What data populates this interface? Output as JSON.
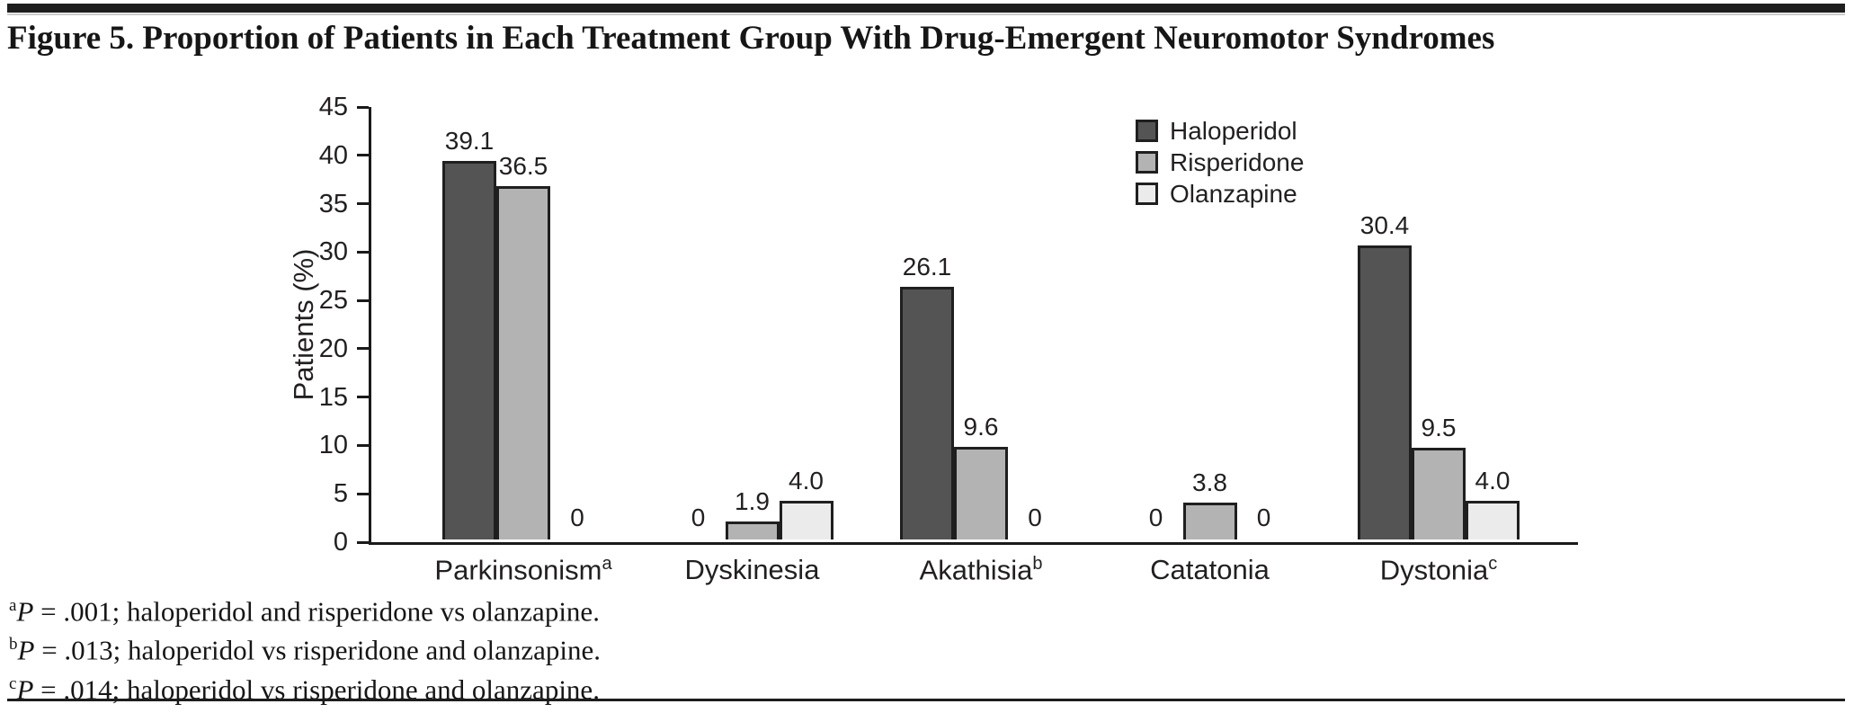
{
  "title": "Figure 5. Proportion of Patients in Each Treatment Group With Drug-Emergent Neuromotor Syndromes",
  "chart_data": {
    "type": "bar",
    "categories": [
      {
        "label": "Parkinsonism",
        "sup": "a"
      },
      {
        "label": "Dyskinesia",
        "sup": ""
      },
      {
        "label": "Akathisia",
        "sup": "b"
      },
      {
        "label": "Catatonia",
        "sup": ""
      },
      {
        "label": "Dystonia",
        "sup": "c"
      }
    ],
    "series": [
      {
        "name": "Haloperidol",
        "color": "#545454",
        "values": [
          39.1,
          0,
          26.1,
          0,
          30.4
        ],
        "labels": [
          "39.1",
          "0",
          "26.1",
          "0",
          "30.4"
        ]
      },
      {
        "name": "Risperidone",
        "color": "#b3b3b3",
        "values": [
          36.5,
          1.9,
          9.6,
          3.8,
          9.5
        ],
        "labels": [
          "36.5",
          "1.9",
          "9.6",
          "3.8",
          "9.5"
        ]
      },
      {
        "name": "Olanzapine",
        "color": "#ebebeb",
        "values": [
          0,
          4.0,
          0,
          0,
          4.0
        ],
        "labels": [
          "0",
          "4.0",
          "0",
          "0",
          "4.0"
        ]
      }
    ],
    "ylabel": "Patients (%)",
    "ylim": [
      0,
      45
    ],
    "yticks": [
      "0",
      "5",
      "10",
      "15",
      "20",
      "25",
      "30",
      "35",
      "40",
      "45"
    ],
    "legend_position": "top-right",
    "grid": false,
    "axis_color": "#1a1a1a",
    "bar_border_color": "#1f1f1f"
  },
  "footnotes": [
    {
      "marker": "a",
      "stat": "P",
      "rest": " = .001; haloperidol and risperidone vs olanzapine."
    },
    {
      "marker": "b",
      "stat": "P",
      "rest": " = .013; haloperidol vs risperidone and olanzapine."
    },
    {
      "marker": "c",
      "stat": "P",
      "rest": " = .014; haloperidol vs risperidone and olanzapine."
    }
  ]
}
